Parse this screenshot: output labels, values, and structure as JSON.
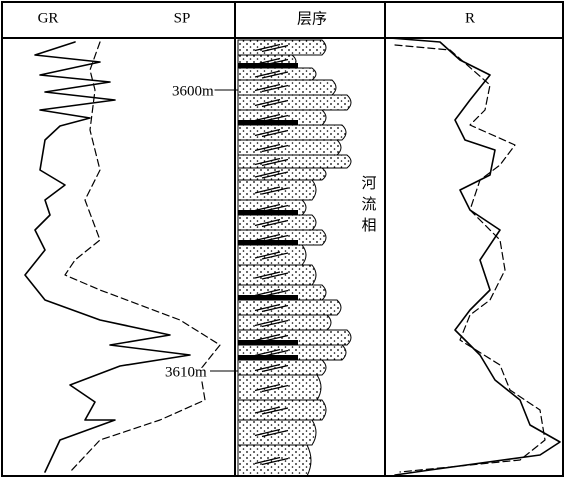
{
  "tracks": [
    {
      "labels": [
        "GR",
        "SP"
      ]
    },
    {
      "labels": [
        "层序"
      ]
    },
    {
      "labels": [
        "R"
      ]
    }
  ],
  "depths": [
    "3600m",
    "3610m"
  ],
  "facies": "河流相"
}
